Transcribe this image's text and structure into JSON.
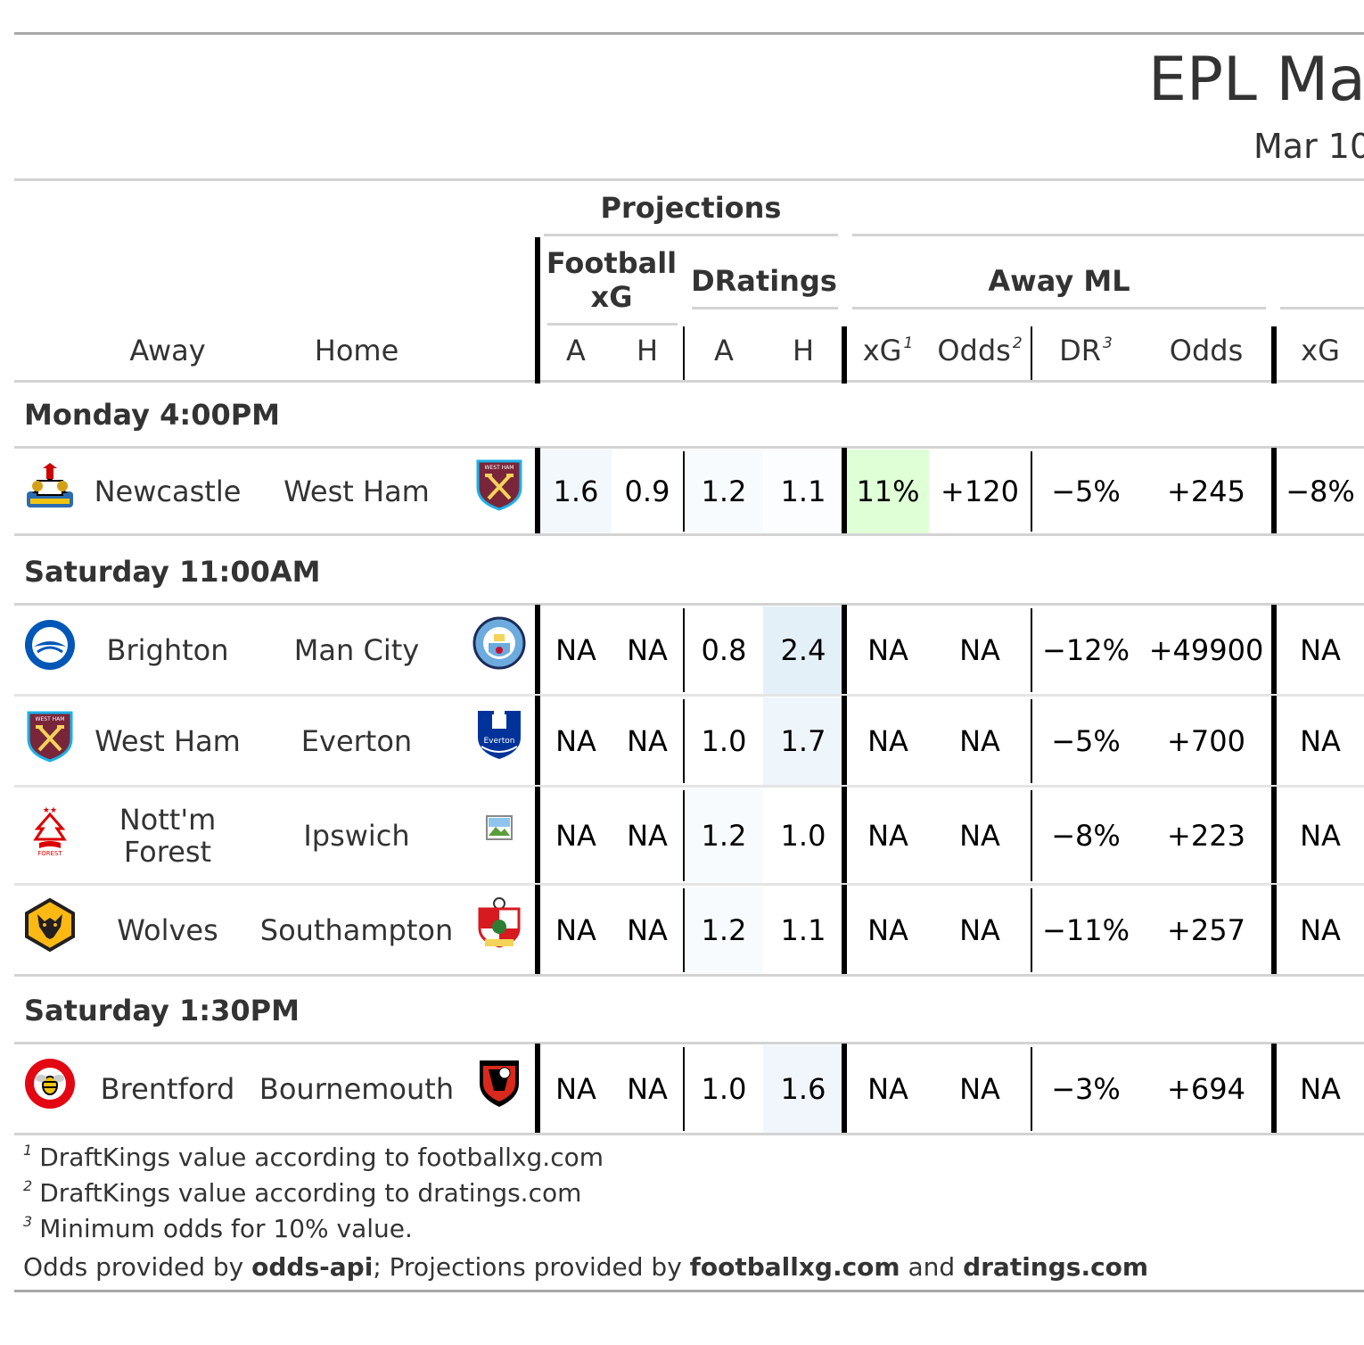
{
  "title": "EPL Ma",
  "subtitle": "Mar 10",
  "headers": {
    "projections": "Projections",
    "football_xg": "Football xG",
    "dratings": "DRatings",
    "away_ml": "Away ML",
    "away": "Away",
    "home": "Home",
    "fxg_a": "A",
    "fxg_h": "H",
    "dr_a": "A",
    "dr_h": "H",
    "ml_xg": "xG",
    "ml_xg_note": "1",
    "ml_odds": "Odds",
    "ml_odds_note": "2",
    "ml_dr": "DR",
    "ml_dr_note": "3",
    "ml_min_odds": "Odds",
    "next_xg": "xG"
  },
  "groups": [
    {
      "label": "Monday 4:00PM",
      "matches": [
        {
          "away": "Newcastle",
          "home": "West Ham",
          "away_logo": "newcastle-crest-icon",
          "home_logo": "west-ham-crest-icon",
          "fxg_a": "1.6",
          "fxg_h": "0.9",
          "dr_a": "1.2",
          "dr_h": "1.1",
          "ml_xg": "11%",
          "ml_odds": "+120",
          "ml_dr": "−5%",
          "ml_min_odds": "+245",
          "next_xg": "−8%"
        }
      ]
    },
    {
      "label": "Saturday 11:00AM",
      "matches": [
        {
          "away": "Brighton",
          "home": "Man City",
          "away_logo": "brighton-crest-icon",
          "home_logo": "man-city-crest-icon",
          "fxg_a": "NA",
          "fxg_h": "NA",
          "dr_a": "0.8",
          "dr_h": "2.4",
          "ml_xg": "NA",
          "ml_odds": "NA",
          "ml_dr": "−12%",
          "ml_min_odds": "+49900",
          "next_xg": "NA"
        },
        {
          "away": "West Ham",
          "home": "Everton",
          "away_logo": "west-ham-crest-icon",
          "home_logo": "everton-crest-icon",
          "fxg_a": "NA",
          "fxg_h": "NA",
          "dr_a": "1.0",
          "dr_h": "1.7",
          "ml_xg": "NA",
          "ml_odds": "NA",
          "ml_dr": "−5%",
          "ml_min_odds": "+700",
          "next_xg": "NA"
        },
        {
          "away": "Nott'm Forest",
          "home": "Ipswich",
          "away_logo": "forest-crest-icon",
          "home_logo": "broken-image-icon",
          "fxg_a": "NA",
          "fxg_h": "NA",
          "dr_a": "1.2",
          "dr_h": "1.0",
          "ml_xg": "NA",
          "ml_odds": "NA",
          "ml_dr": "−8%",
          "ml_min_odds": "+223",
          "next_xg": "NA"
        },
        {
          "away": "Wolves",
          "home": "Southampton",
          "away_logo": "wolves-crest-icon",
          "home_logo": "southampton-crest-icon",
          "fxg_a": "NA",
          "fxg_h": "NA",
          "dr_a": "1.2",
          "dr_h": "1.1",
          "ml_xg": "NA",
          "ml_odds": "NA",
          "ml_dr": "−11%",
          "ml_min_odds": "+257",
          "next_xg": "NA"
        }
      ]
    },
    {
      "label": "Saturday 1:30PM",
      "matches": [
        {
          "away": "Brentford",
          "home": "Bournemouth",
          "away_logo": "brentford-crest-icon",
          "home_logo": "bournemouth-crest-icon",
          "fxg_a": "NA",
          "fxg_h": "NA",
          "dr_a": "1.0",
          "dr_h": "1.6",
          "ml_xg": "NA",
          "ml_odds": "NA",
          "ml_dr": "−3%",
          "ml_min_odds": "+694",
          "next_xg": "NA"
        }
      ]
    }
  ],
  "footnotes": [
    {
      "mark": "1",
      "text": "DraftKings value according to footballxg.com"
    },
    {
      "mark": "2",
      "text": "DraftKings value according to dratings.com"
    },
    {
      "mark": "3",
      "text": "Minimum odds for 10% value."
    }
  ],
  "source": {
    "prefix": "Odds provided by ",
    "odds_api": "odds-api",
    "mid": "; Projections provided by ",
    "fxg": "footballxg.com",
    "and": " and ",
    "dratings": "dratings.com"
  },
  "colors": {
    "line_gray": "#d3d3d3",
    "thick_black": "#000000",
    "highlight_green": "#dfffd6",
    "shade_light": "#f3f8fc",
    "shade_med": "#e4f0f8",
    "shade_faint": "#f8fbfd"
  }
}
